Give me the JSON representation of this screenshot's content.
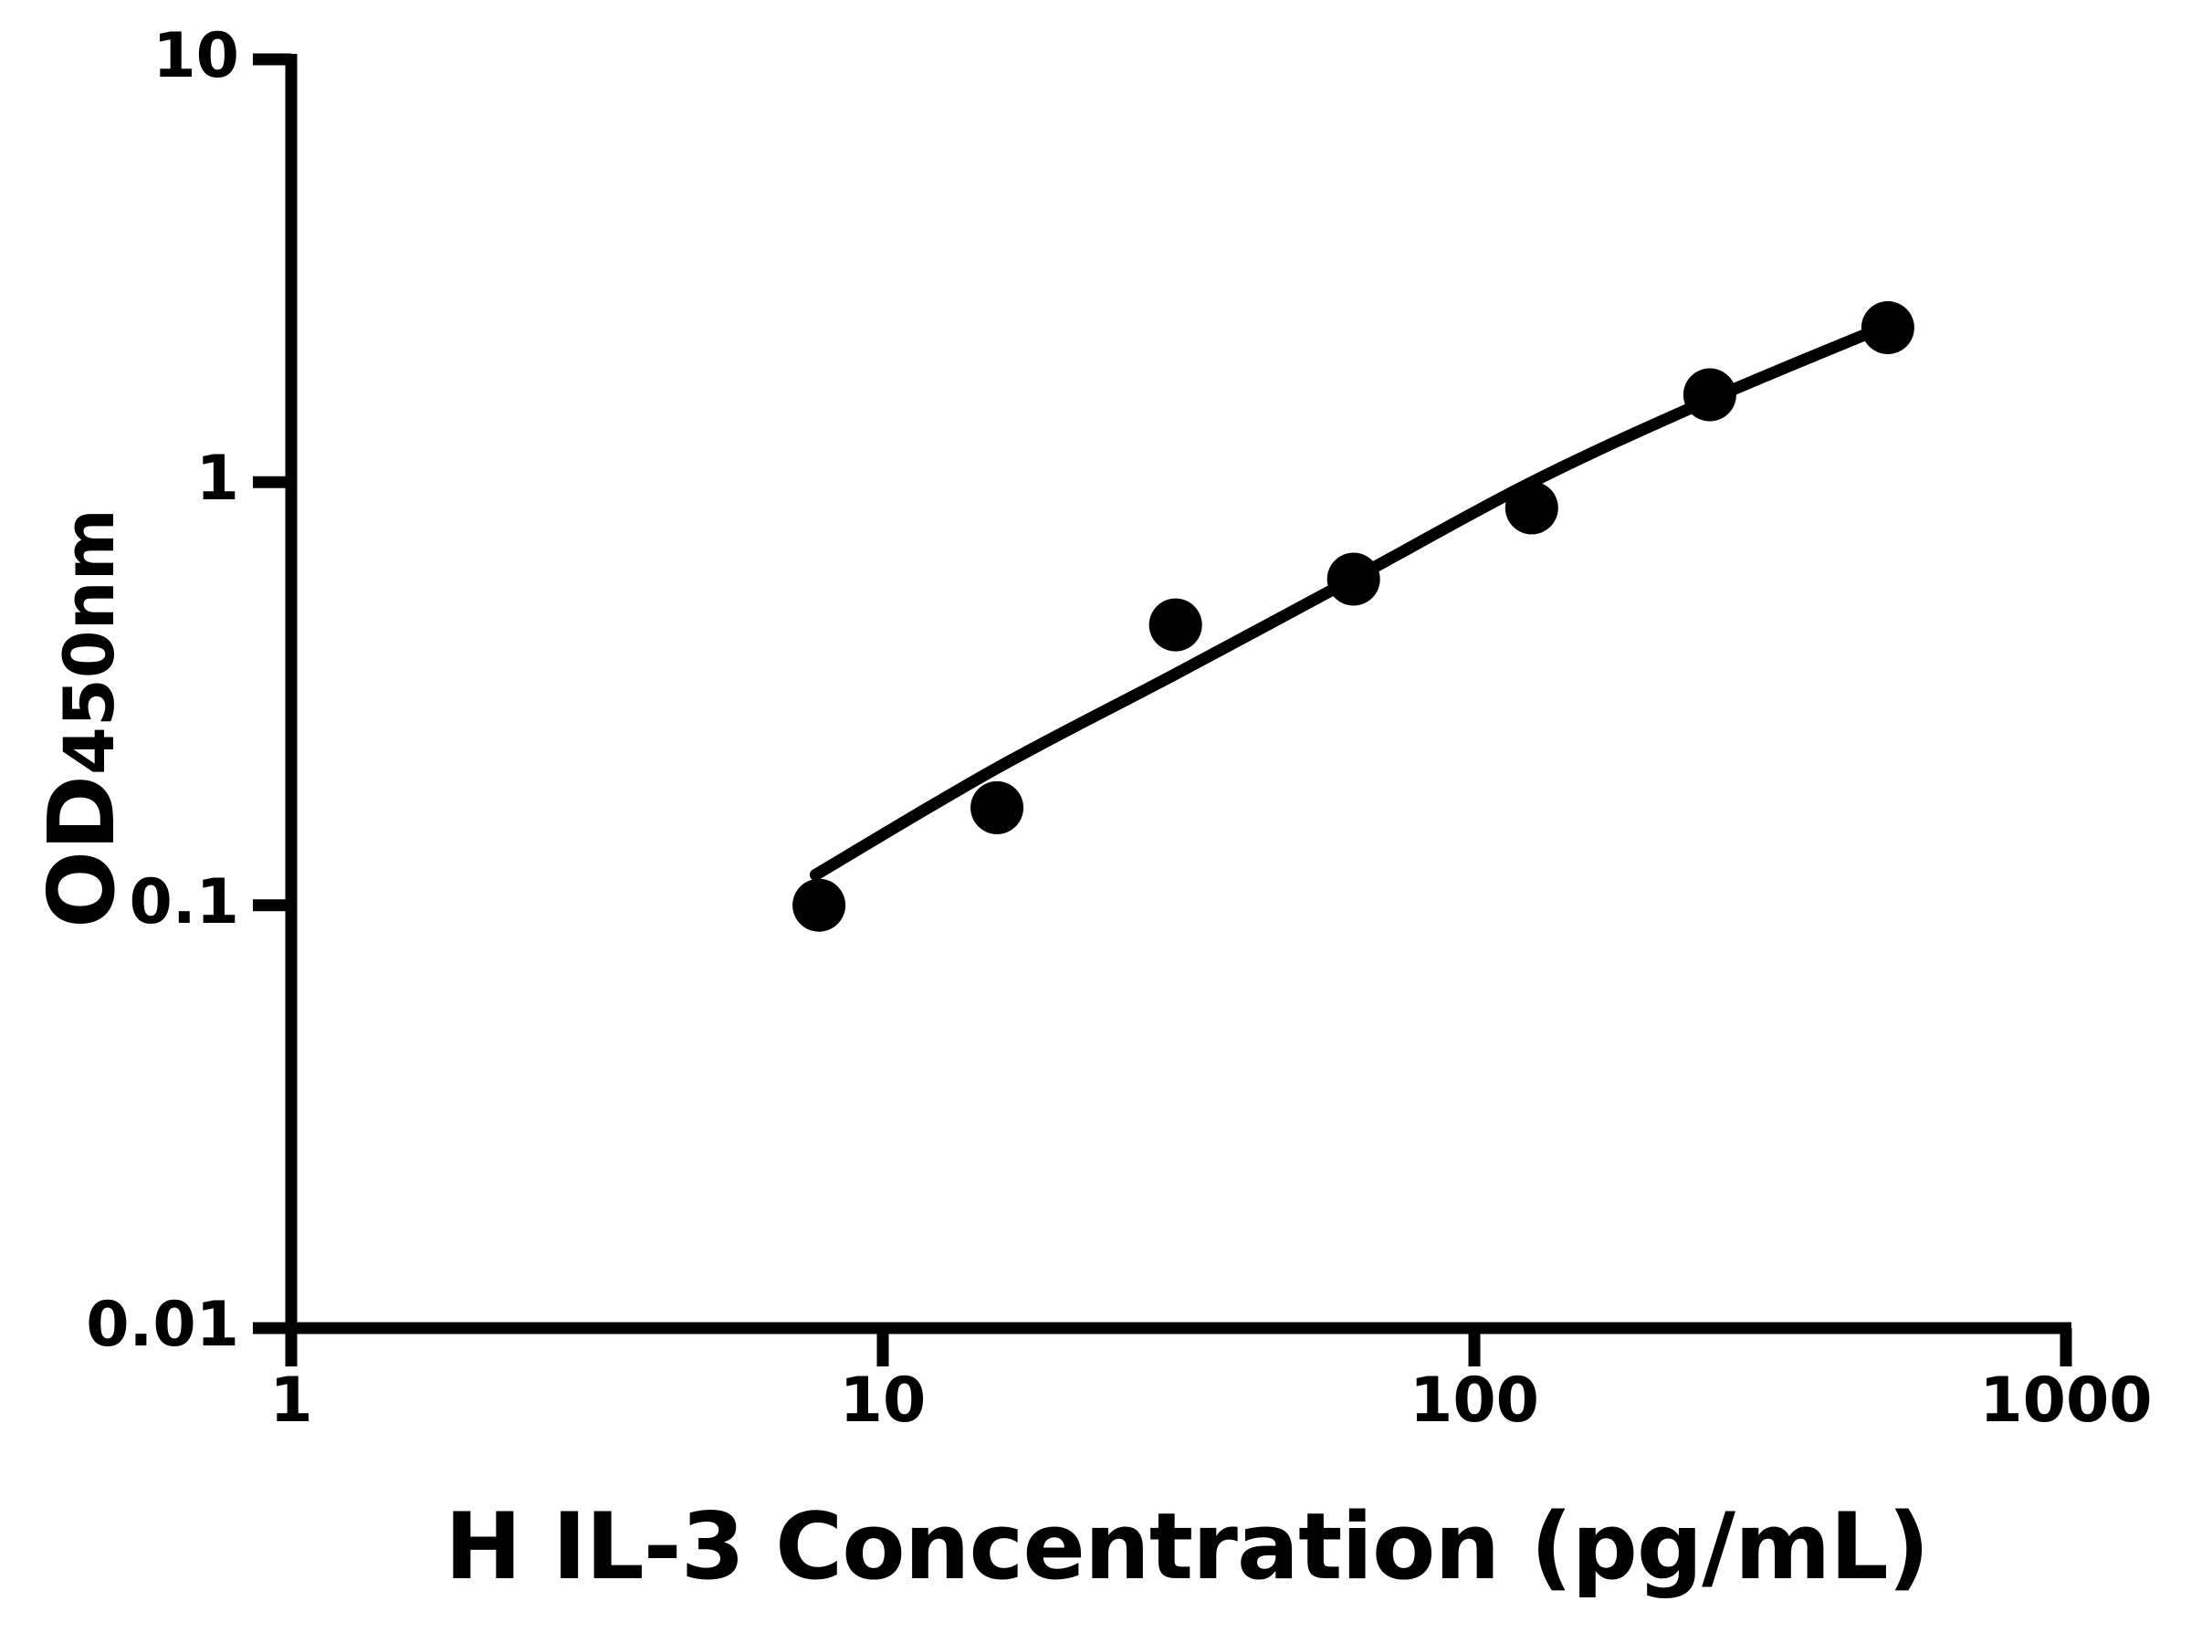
{
  "chart_data": {
    "type": "scatter",
    "title": "",
    "xlabel": "H IL-3 Concentration (pg/mL)",
    "ylabel": "OD450nm",
    "ylabel_parts": {
      "main": "OD",
      "sub": "450nm"
    },
    "x_scale": "log",
    "y_scale": "log",
    "xlim": [
      1,
      1000
    ],
    "ylim": [
      0.01,
      10
    ],
    "grid": false,
    "legend": false,
    "axis_color": "#000000",
    "marker_color": "#000000",
    "line_color": "#000000",
    "background_color": "#ffffff",
    "x_ticks": [
      1,
      10,
      100,
      1000
    ],
    "x_tick_labels": [
      "1",
      "10",
      "100",
      "1000"
    ],
    "y_ticks": [
      10,
      1,
      0.1,
      0.01
    ],
    "y_tick_labels": [
      "10",
      "1",
      "0.1",
      "0.01"
    ],
    "points": [
      {
        "x": 7.8,
        "y": 0.1
      },
      {
        "x": 15.6,
        "y": 0.17
      },
      {
        "x": 31.25,
        "y": 0.46
      },
      {
        "x": 62.5,
        "y": 0.59
      },
      {
        "x": 125,
        "y": 0.87
      },
      {
        "x": 250,
        "y": 1.61
      },
      {
        "x": 500,
        "y": 2.32
      }
    ],
    "fit_curve": [
      {
        "x": 7.7,
        "y": 0.118
      },
      {
        "x": 15.5,
        "y": 0.21
      },
      {
        "x": 31,
        "y": 0.35
      },
      {
        "x": 62.5,
        "y": 0.592
      },
      {
        "x": 125,
        "y": 1.0
      },
      {
        "x": 248,
        "y": 1.56
      },
      {
        "x": 500,
        "y": 2.35
      }
    ]
  }
}
